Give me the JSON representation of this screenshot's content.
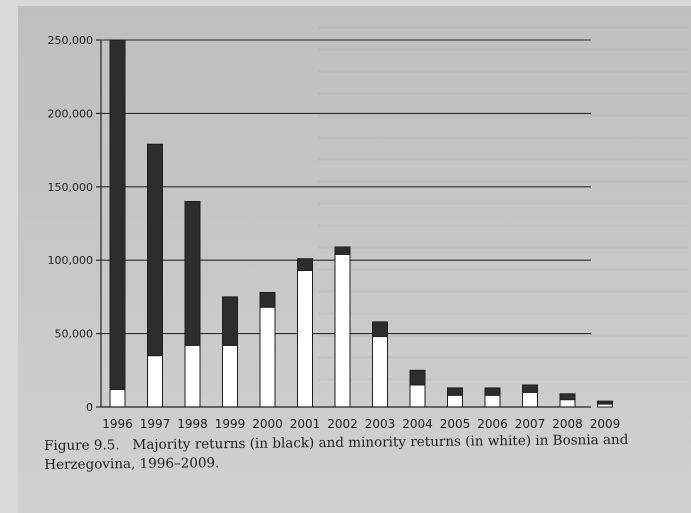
{
  "chart_data": {
    "type": "bar",
    "stacked": true,
    "categories": [
      "1996",
      "1997",
      "1998",
      "1999",
      "2000",
      "2001",
      "2002",
      "2003",
      "2004",
      "2005",
      "2006",
      "2007",
      "2008",
      "2009"
    ],
    "series": [
      {
        "name": "minority returns (in white)",
        "color": "#ffffff",
        "values": [
          12000,
          35000,
          42000,
          42000,
          68000,
          93000,
          104000,
          48000,
          15000,
          8000,
          8000,
          10000,
          5000,
          2000
        ]
      },
      {
        "name": "majority returns (in black)",
        "color": "#2d2d2d",
        "values": [
          238000,
          144000,
          98000,
          33000,
          10000,
          8000,
          5000,
          10000,
          10000,
          5000,
          5000,
          5000,
          4000,
          2000
        ]
      }
    ],
    "y_ticks": [
      "0",
      "50,000",
      "100,000",
      "150,000",
      "200,000",
      "250,000"
    ],
    "y_tick_values": [
      0,
      50000,
      100000,
      150000,
      200000,
      250000
    ],
    "ylim": [
      0,
      250000
    ],
    "grid": true,
    "caption_label": "Figure 9.5.",
    "caption_text": "Majority returns (in black) and minority returns (in white) in Bosnia and Herzegovina, 1996–2009."
  }
}
